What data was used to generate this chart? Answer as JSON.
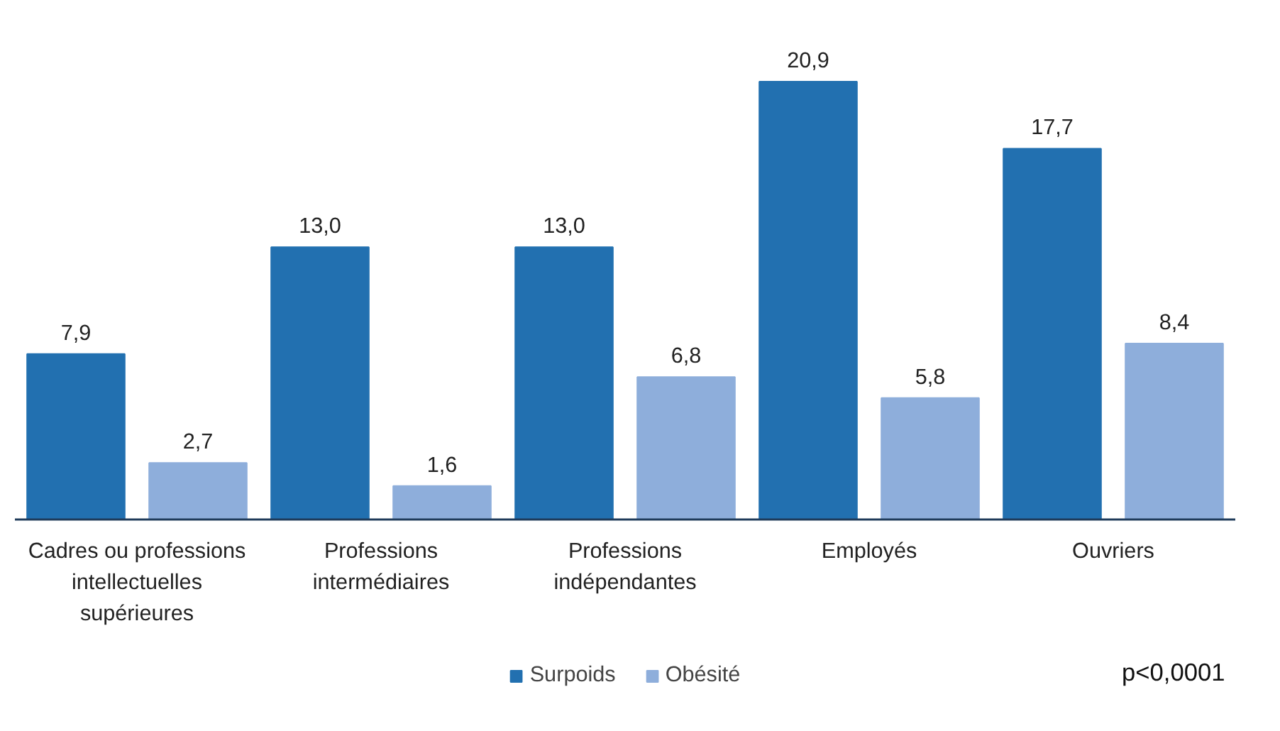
{
  "chart_data": {
    "type": "bar",
    "categories": [
      "Cadres ou professions intellectuelles supérieures",
      "Professions intermédiaires",
      "Professions indépendantes",
      "Employés",
      "Ouvriers"
    ],
    "series": [
      {
        "name": "Surpoids",
        "color": "#2270b0",
        "values": [
          7.9,
          13.0,
          13.0,
          20.9,
          17.7
        ],
        "value_labels": [
          "7,9",
          "13,0",
          "13,0",
          "20,9",
          "17,7"
        ]
      },
      {
        "name": "Obésité",
        "color": "#8eaedb",
        "values": [
          2.7,
          1.6,
          6.8,
          5.8,
          8.4
        ],
        "value_labels": [
          "2,7",
          "1,6",
          "6,8",
          "5,8",
          "8,4"
        ]
      }
    ],
    "legend": "bottom",
    "annotations": [
      "p<0,0001"
    ]
  }
}
